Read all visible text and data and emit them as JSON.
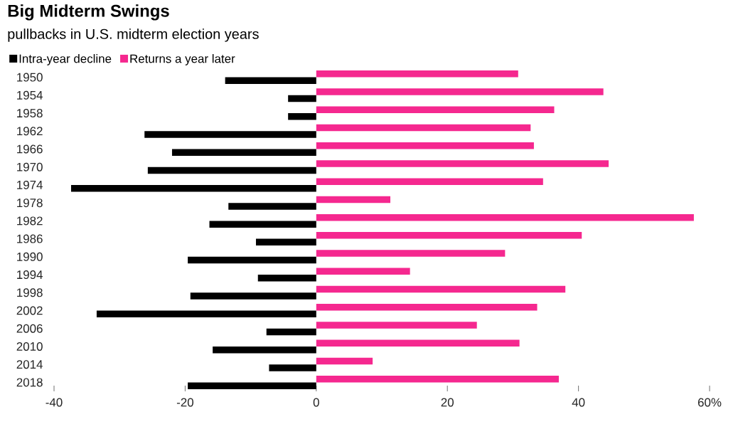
{
  "chart_data": {
    "type": "bar",
    "orientation": "horizontal",
    "title": "Big Midterm Swings",
    "subtitle": "pullbacks in U.S. midterm election years",
    "categories": [
      "1950",
      "1954",
      "1958",
      "1962",
      "1966",
      "1970",
      "1974",
      "1978",
      "1982",
      "1986",
      "1990",
      "1994",
      "1998",
      "2002",
      "2006",
      "2010",
      "2014",
      "2018"
    ],
    "series": [
      {
        "name": "Intra-year decline",
        "color": "#000000",
        "values": [
          -13.9,
          -4.3,
          -4.3,
          -26.2,
          -22.0,
          -25.7,
          -37.4,
          -13.4,
          -16.3,
          -9.2,
          -19.6,
          -8.9,
          -19.2,
          -33.5,
          -7.6,
          -15.8,
          -7.2,
          -19.6
        ]
      },
      {
        "name": "Returns a year later",
        "color": "#f5288f",
        "values": [
          30.8,
          43.8,
          36.3,
          32.7,
          33.2,
          44.6,
          34.6,
          11.3,
          57.6,
          40.5,
          28.8,
          14.3,
          38.0,
          33.7,
          24.5,
          31.0,
          8.6,
          37.0
        ]
      }
    ],
    "xlim": [
      -40,
      60
    ],
    "xticks": [
      -40,
      -20,
      0,
      20,
      40,
      {
        "value": 60,
        "label": "60%"
      }
    ],
    "grid": false,
    "legend": "top left"
  }
}
